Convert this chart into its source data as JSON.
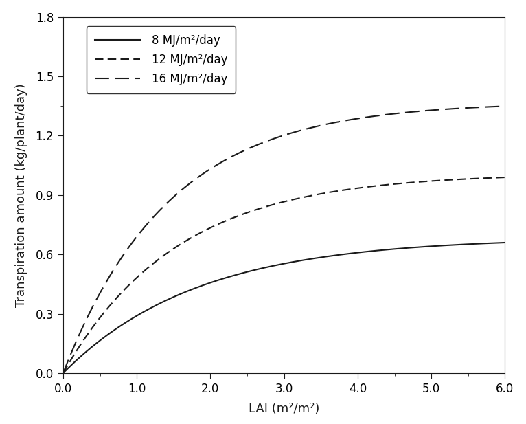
{
  "title": "",
  "xlabel": "LAI (m²/m²)",
  "ylabel": "Transpiration amount (kg/plant/day)",
  "xlim": [
    0.0,
    6.0
  ],
  "ylim": [
    0.0,
    1.8
  ],
  "xticks": [
    0.0,
    1.0,
    2.0,
    3.0,
    4.0,
    5.0,
    6.0
  ],
  "yticks": [
    0.0,
    0.3,
    0.6,
    0.9,
    1.2,
    1.5,
    1.8
  ],
  "series": [
    {
      "label": "8 MJ/m²/day",
      "linestyle_type": "solid",
      "linewidth": 1.5,
      "color": "#1a1a1a",
      "T_max": 0.685,
      "k": 0.55
    },
    {
      "label": "12 MJ/m²/day",
      "linestyle_type": "dashed_short",
      "linewidth": 1.5,
      "color": "#1a1a1a",
      "T_max": 1.01,
      "k": 0.65
    },
    {
      "label": "16 MJ/m²/day",
      "linestyle_type": "dashed_long",
      "linewidth": 1.5,
      "color": "#1a1a1a",
      "T_max": 1.37,
      "k": 0.7
    }
  ],
  "background_color": "#ffffff",
  "figsize": [
    7.66,
    6.17
  ],
  "dpi": 100
}
